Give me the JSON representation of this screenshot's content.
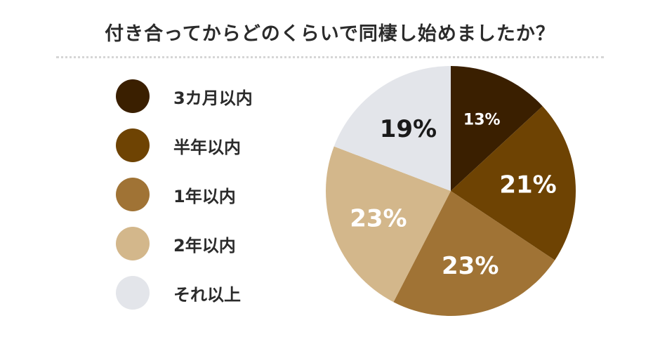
{
  "chart_data": {
    "type": "pie",
    "title": "付き合ってからどのくらいで同棲し始めましたか？",
    "legend_position": "left",
    "slices": [
      {
        "label": "3カ月以内",
        "value": 13,
        "display": "13%",
        "color": "#3a1f00",
        "text_color": "#ffffff"
      },
      {
        "label": "半年以内",
        "value": 21,
        "display": "21%",
        "color": "#6e4303",
        "text_color": "#ffffff"
      },
      {
        "label": "1年以内",
        "value": 23,
        "display": "23%",
        "color": "#a07335",
        "text_color": "#ffffff"
      },
      {
        "label": "2年以内",
        "value": 23,
        "display": "23%",
        "color": "#d3b78b",
        "text_color": "#ffffff"
      },
      {
        "label": "それ以上",
        "value": 19,
        "display": "19%",
        "color": "#e3e5ea",
        "text_color": "#1a1a1a"
      }
    ]
  }
}
